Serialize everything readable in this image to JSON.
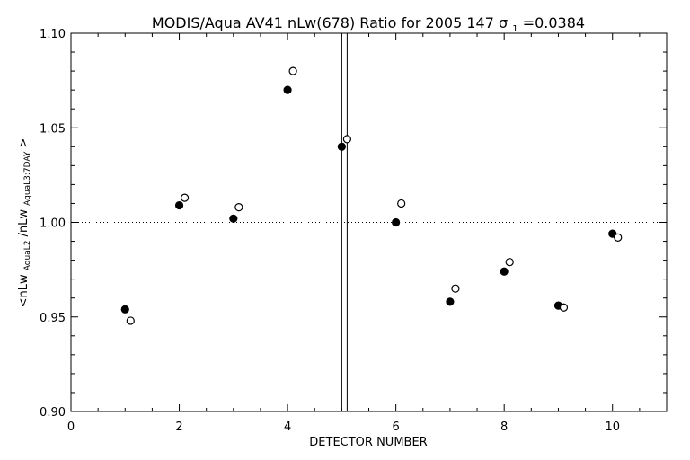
{
  "chart_data": {
    "type": "scatter",
    "title": "MODIS/Aqua AV41 nLw(678) Ratio for 2005 147 σ1=0.0384",
    "title_parts": {
      "prefix": "MODIS/Aqua AV41 nLw(678) Ratio for 2005 147 ",
      "sigma_symbol": "σ",
      "sigma_subscript": "1",
      "sigma_value": "=0.0384"
    },
    "xlabel": "DETECTOR NUMBER",
    "ylabel": "<nLw_AquaL2/nLw_AquaL3:7DAY>",
    "ylabel_parts": {
      "left": "<nLw",
      "sub1": "AquaL2",
      "middle": "/nLw",
      "sub2": "AquaL3:7DAY",
      "right": ">"
    },
    "xlim": [
      0,
      11
    ],
    "ylim": [
      0.9,
      1.1
    ],
    "x_ticks": [
      "0",
      "2",
      "4",
      "6",
      "8",
      "10"
    ],
    "y_ticks": [
      "0.90",
      "0.95",
      "1.00",
      "1.05",
      "1.10"
    ],
    "reference_line_y": 1.0,
    "vertical_lines_x": [
      5.0,
      5.1
    ],
    "series": [
      {
        "marker": "filled-circle",
        "x": [
          1.0,
          2.0,
          3.0,
          4.0,
          5.0,
          6.0,
          7.0,
          8.0,
          9.0,
          10.0
        ],
        "values": [
          0.954,
          1.009,
          1.002,
          1.07,
          1.04,
          1.0,
          0.958,
          0.974,
          0.956,
          0.994
        ]
      },
      {
        "marker": "open-circle",
        "x": [
          1.1,
          2.1,
          3.1,
          4.1,
          5.1,
          6.1,
          7.1,
          8.1,
          9.1,
          10.1
        ],
        "values": [
          0.948,
          1.013,
          1.008,
          1.08,
          1.044,
          1.01,
          0.965,
          0.979,
          0.955,
          0.992
        ]
      }
    ],
    "grid": false,
    "colors": {
      "foreground": "#000000",
      "background": "#ffffff"
    }
  }
}
